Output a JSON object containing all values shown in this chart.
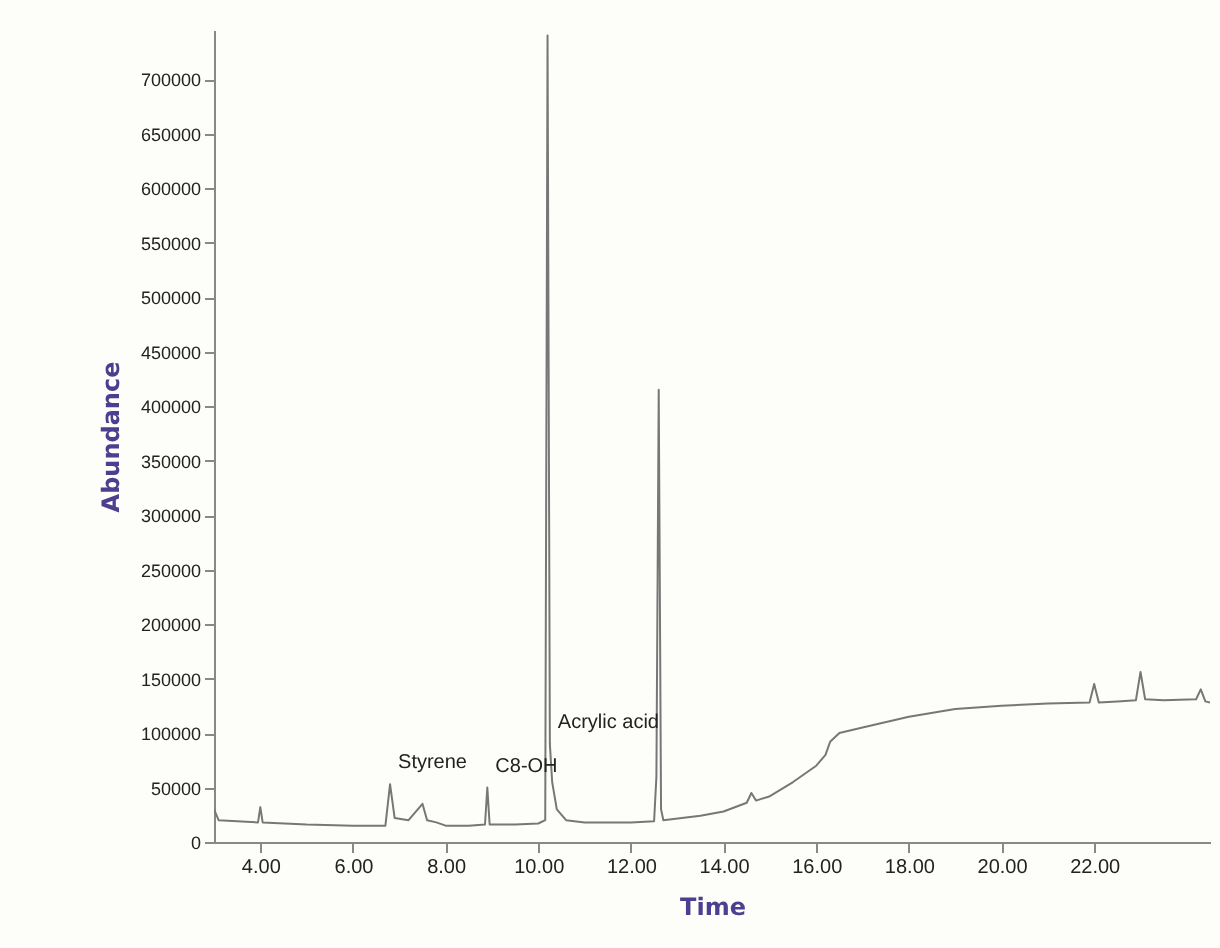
{
  "chart_data": {
    "type": "line",
    "xlabel": "Time",
    "ylabel": "Abundance",
    "x": [
      3.0,
      3.1,
      3.5,
      3.95,
      4.0,
      4.05,
      5.0,
      6.0,
      6.7,
      6.8,
      6.9,
      7.2,
      7.5,
      7.6,
      7.8,
      8.0,
      8.5,
      8.85,
      8.9,
      8.95,
      9.5,
      10.0,
      10.15,
      10.2,
      10.25,
      10.3,
      10.4,
      10.6,
      11.0,
      12.0,
      12.5,
      12.55,
      12.6,
      12.65,
      12.7,
      13.5,
      14.0,
      14.5,
      14.6,
      14.7,
      15.0,
      15.5,
      16.0,
      16.2,
      16.3,
      16.5,
      17.0,
      18.0,
      19.0,
      20.0,
      21.0,
      21.9,
      22.0,
      22.1,
      22.5,
      22.9,
      23.0,
      23.1,
      23.5,
      24.2,
      24.3,
      24.4,
      24.5
    ],
    "series": [
      {
        "color": "#777777",
        "values": [
          30000,
          20000,
          19000,
          18000,
          32000,
          18000,
          16000,
          15000,
          15000,
          53000,
          22000,
          20000,
          35000,
          20000,
          18000,
          15000,
          15000,
          16000,
          50000,
          16000,
          16000,
          17000,
          20000,
          740000,
          90000,
          55000,
          30000,
          20000,
          18000,
          18000,
          19000,
          60000,
          415000,
          30000,
          20000,
          24000,
          28000,
          36000,
          45000,
          38000,
          42000,
          55000,
          70000,
          80000,
          92000,
          100000,
          105000,
          115000,
          122000,
          125000,
          127000,
          128000,
          145000,
          128000,
          129000,
          130000,
          156000,
          131000,
          130000,
          131000,
          140000,
          129000,
          128000
        ]
      }
    ],
    "annotations": [
      {
        "text": "Styrene",
        "x": 6.8,
        "y": 53000
      },
      {
        "text": "C8-OH",
        "x": 8.9,
        "y": 50000
      },
      {
        "text": "Acrylic acid",
        "x": 10.25,
        "y": 90000
      }
    ],
    "xlim": [
      3.0,
      24.5
    ],
    "xticks": [
      {
        "value": 4,
        "label": "4.00"
      },
      {
        "value": 6,
        "label": "6.00"
      },
      {
        "value": 8,
        "label": "8.00"
      },
      {
        "value": 10,
        "label": "10.00"
      },
      {
        "value": 12,
        "label": "12.00"
      },
      {
        "value": 14,
        "label": "14.00"
      },
      {
        "value": 16,
        "label": "16.00"
      },
      {
        "value": 18,
        "label": "18.00"
      },
      {
        "value": 20,
        "label": "20.00"
      },
      {
        "value": 22,
        "label": "22.00"
      }
    ],
    "ylim": [
      0,
      745000
    ],
    "yticks": [
      0,
      50000,
      100000,
      150000,
      200000,
      250000,
      300000,
      350000,
      400000,
      450000,
      500000,
      550000,
      600000,
      650000,
      700000
    ],
    "grid": false,
    "marker": "none",
    "line_style": "solid"
  }
}
